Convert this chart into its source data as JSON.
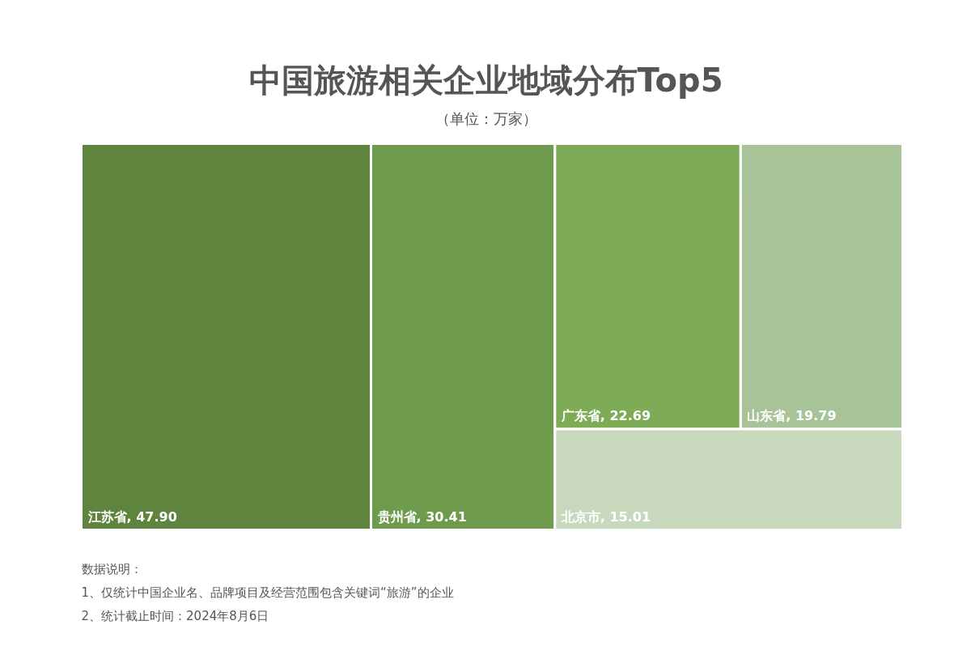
{
  "chart_data": {
    "type": "other",
    "title": "中国旅游相关企业地域分布Top5",
    "subtitle": "（单位：万家）",
    "categories": [
      "江苏省",
      "贵州省",
      "广东省",
      "山东省",
      "北京市"
    ],
    "values": [
      47.9,
      30.41,
      22.69,
      19.79,
      15.01
    ],
    "value_labels": [
      ", 47.90",
      ", 30.41",
      ", 22.69",
      ", 19.79",
      ", 15.01"
    ],
    "data_labels": true,
    "colors": [
      "#5e843e",
      "#6f9b4c",
      "#7eab56",
      "#a7c397",
      "#c8d8bd"
    ],
    "annotations": [
      "数据说明：",
      "1、仅统计中国企业名、品牌项目及经营范围包含关键词“旅游”的企业",
      "2、统计截止时间：2024年8月6日"
    ]
  }
}
